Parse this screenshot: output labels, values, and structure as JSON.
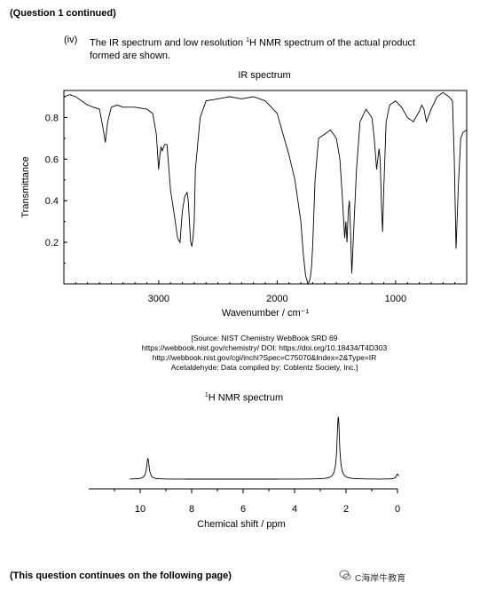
{
  "header": {
    "continued": "(Question 1 continued)"
  },
  "question": {
    "number": "(iv)",
    "text_pre": "The IR spectrum and low resolution ",
    "text_sup": "1",
    "text_post": "H NMR spectrum of the actual product",
    "text_line2": "formed are shown."
  },
  "ir": {
    "title": "IR spectrum",
    "ylabel": "Transmittance",
    "xlabel": "Wavenumber / cm⁻¹",
    "xticks": [
      "3000",
      "2000",
      "1000"
    ],
    "yticks": [
      "0.2",
      "0.4",
      "0.6",
      "0.8"
    ]
  },
  "source": {
    "line1": "[Source: NIST Chemistry WebBook SRD 69",
    "line2": "https://webbook.nist.gov/chemistry/ DOI: https://doi.org/10.18434/T4D303",
    "line3": "http://webbook.nist.gov/cgi/inchi?Spec=C75070&Index=2&Type=IR",
    "line4": "Acetaldehyde: Data compiled by: Coblentz Society, Inc.]"
  },
  "nmr": {
    "title_sup": "1",
    "title": "H NMR spectrum",
    "xlabel": "Chemical shift / ppm",
    "xticks": [
      "10",
      "8",
      "6",
      "4",
      "2",
      "0"
    ]
  },
  "footer": {
    "continues": "(This question continues on the following page)"
  },
  "watermark": {
    "text": "C海岸牛教育"
  },
  "chart_data": [
    {
      "type": "line",
      "title": "IR spectrum",
      "xlabel": "Wavenumber / cm⁻¹",
      "ylabel": "Transmittance",
      "xlim": [
        3800,
        400
      ],
      "ylim": [
        0,
        0.93
      ],
      "x": [
        3800,
        3750,
        3700,
        3650,
        3600,
        3550,
        3500,
        3470,
        3450,
        3430,
        3400,
        3350,
        3300,
        3200,
        3100,
        3050,
        3020,
        3000,
        2990,
        2980,
        2970,
        2950,
        2930,
        2920,
        2900,
        2880,
        2860,
        2840,
        2820,
        2800,
        2780,
        2760,
        2750,
        2740,
        2730,
        2720,
        2710,
        2700,
        2690,
        2650,
        2600,
        2500,
        2400,
        2300,
        2200,
        2100,
        2050,
        2000,
        1950,
        1900,
        1850,
        1800,
        1780,
        1760,
        1740,
        1730,
        1720,
        1710,
        1700,
        1680,
        1650,
        1600,
        1550,
        1500,
        1470,
        1450,
        1430,
        1420,
        1410,
        1400,
        1390,
        1380,
        1370,
        1350,
        1330,
        1300,
        1250,
        1200,
        1180,
        1160,
        1140,
        1130,
        1120,
        1110,
        1100,
        1080,
        1050,
        1000,
        950,
        900,
        850,
        800,
        780,
        760,
        740,
        700,
        650,
        600,
        550,
        520,
        505,
        490,
        470,
        450,
        430,
        400
      ],
      "y": [
        0.9,
        0.91,
        0.9,
        0.88,
        0.86,
        0.85,
        0.84,
        0.75,
        0.68,
        0.78,
        0.85,
        0.86,
        0.85,
        0.85,
        0.84,
        0.82,
        0.72,
        0.55,
        0.62,
        0.66,
        0.64,
        0.67,
        0.67,
        0.6,
        0.45,
        0.38,
        0.3,
        0.22,
        0.2,
        0.35,
        0.42,
        0.44,
        0.4,
        0.3,
        0.2,
        0.18,
        0.22,
        0.3,
        0.55,
        0.8,
        0.88,
        0.89,
        0.9,
        0.89,
        0.9,
        0.88,
        0.85,
        0.82,
        0.72,
        0.62,
        0.5,
        0.3,
        0.15,
        0.04,
        0.0,
        0.01,
        0.03,
        0.08,
        0.18,
        0.5,
        0.7,
        0.72,
        0.74,
        0.7,
        0.6,
        0.42,
        0.22,
        0.3,
        0.2,
        0.35,
        0.4,
        0.25,
        0.05,
        0.3,
        0.55,
        0.78,
        0.84,
        0.8,
        0.7,
        0.55,
        0.65,
        0.6,
        0.38,
        0.25,
        0.45,
        0.78,
        0.86,
        0.88,
        0.85,
        0.8,
        0.78,
        0.83,
        0.86,
        0.84,
        0.78,
        0.84,
        0.9,
        0.92,
        0.9,
        0.88,
        0.6,
        0.17,
        0.48,
        0.7,
        0.73,
        0.74
      ]
    },
    {
      "type": "line",
      "title": "H NMR spectrum",
      "xlabel": "Chemical shift / ppm",
      "xlim": [
        12,
        0
      ],
      "peaks": [
        {
          "shift": 9.7,
          "relative_height": 0.33
        },
        {
          "shift": 2.3,
          "relative_height": 1.0
        },
        {
          "shift": 0.0,
          "relative_height": 0.08
        }
      ]
    }
  ]
}
